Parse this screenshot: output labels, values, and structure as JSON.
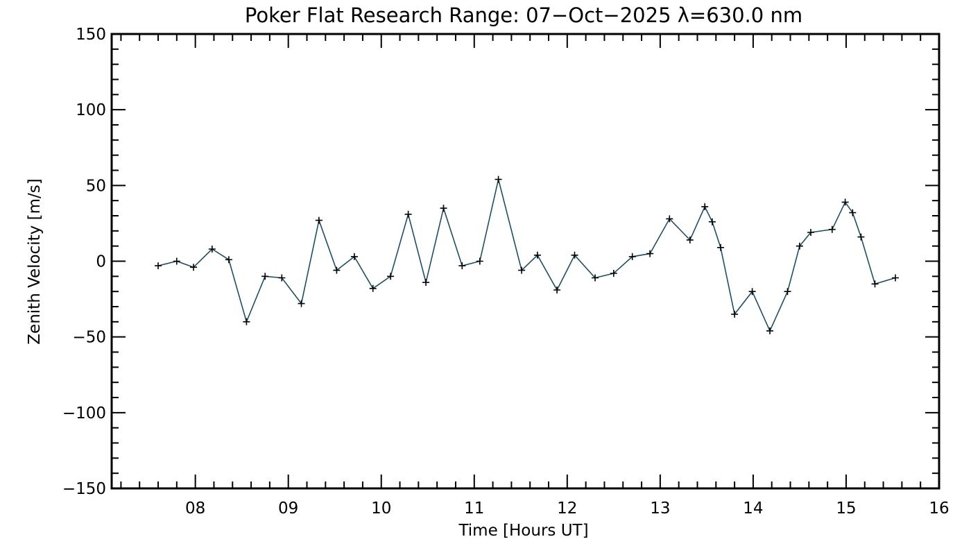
{
  "chart_data": {
    "type": "line",
    "title": "Poker Flat Research Range: 07−Oct−2025 λ=630.0 nm",
    "xlabel": "Time [Hours UT]",
    "ylabel": "Zenith Velocity [m/s]",
    "xlim": [
      7.1,
      16.0
    ],
    "ylim": [
      -150,
      150
    ],
    "x_ticks": [
      8,
      9,
      10,
      11,
      12,
      13,
      14,
      15,
      16
    ],
    "x_tick_labels": [
      "08",
      "09",
      "10",
      "11",
      "12",
      "13",
      "14",
      "15",
      "16"
    ],
    "y_ticks": [
      -150,
      -100,
      -50,
      0,
      50,
      100,
      150
    ],
    "y_tick_labels": [
      "−150",
      "−100",
      "−50",
      "0",
      "50",
      "100",
      "150"
    ],
    "line_color": "#1f4e60",
    "marker": "+",
    "series": [
      {
        "name": "Zenith Velocity",
        "x": [
          7.6,
          7.8,
          7.98,
          8.18,
          8.36,
          8.55,
          8.75,
          8.93,
          9.14,
          9.33,
          9.52,
          9.71,
          9.91,
          10.1,
          10.29,
          10.48,
          10.67,
          10.87,
          11.06,
          11.26,
          11.51,
          11.68,
          11.89,
          12.08,
          12.3,
          12.5,
          12.7,
          12.89,
          13.1,
          13.32,
          13.48,
          13.56,
          13.65,
          13.8,
          13.99,
          14.18,
          14.37,
          14.5,
          14.62,
          14.85,
          14.99,
          15.07,
          15.16,
          15.31,
          15.53
        ],
        "y": [
          -3,
          0,
          -4,
          8,
          1,
          -40,
          -10,
          -11,
          -28,
          27,
          -6,
          3,
          -18,
          -10,
          31,
          -14,
          35,
          -3,
          0,
          54,
          -6,
          4,
          -19,
          4,
          -11,
          -8,
          3,
          5,
          28,
          14,
          36,
          26,
          9,
          -35,
          -20,
          -46,
          -20,
          10,
          19,
          21,
          39,
          32,
          16,
          -15,
          -11
        ]
      }
    ]
  }
}
